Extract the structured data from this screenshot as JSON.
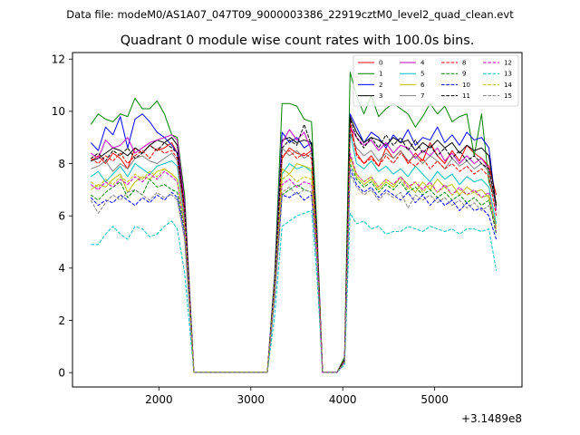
{
  "suptitle": "Data file: modeM0/AS1A07_047T09_9000003386_22919cztM0_level2_quad_clean.evt",
  "chart_data": {
    "type": "line",
    "title": "Quadrant 0 module wise count rates with 100.0s bins.",
    "xlabel": "",
    "ylabel": "",
    "x_offset_label": "+3.1489e8",
    "xlim": [
      1060,
      5950
    ],
    "ylim": [
      -0.55,
      12.25
    ],
    "xticks": [
      2000,
      3000,
      4000,
      5000
    ],
    "xtick_labels": [
      "2000",
      "3000",
      "4000",
      "5000"
    ],
    "yticks": [
      0,
      2,
      4,
      6,
      8,
      10,
      12
    ],
    "ytick_labels": [
      "0",
      "2",
      "4",
      "6",
      "8",
      "10",
      "12"
    ],
    "grid": false,
    "legend_position": "top-right",
    "legend_columns": 4,
    "x": [
      1260,
      1340,
      1420,
      1500,
      1580,
      1660,
      1740,
      1820,
      1900,
      1980,
      2060,
      2140,
      2200,
      2280,
      2380,
      2460,
      2540,
      2620,
      2700,
      2780,
      2860,
      2940,
      3020,
      3100,
      3180,
      3260,
      3340,
      3420,
      3500,
      3580,
      3660,
      3720,
      3780,
      3860,
      3940,
      4020,
      4080,
      4150,
      4230,
      4310,
      4390,
      4470,
      4550,
      4630,
      4710,
      4790,
      4870,
      4950,
      5030,
      5110,
      5190,
      5270,
      5350,
      5430,
      5510,
      5590,
      5670
    ],
    "series": [
      {
        "name": "0",
        "color": "#ff0000",
        "dash": false,
        "values": [
          8.1,
          8.3,
          8.0,
          8.4,
          8.2,
          7.8,
          8.6,
          8.4,
          8.7,
          8.5,
          8.6,
          8.8,
          8.4,
          6.2,
          0.02,
          0.02,
          0.02,
          0.02,
          0.02,
          0.02,
          0.02,
          0.02,
          0.02,
          0.02,
          0.02,
          3.5,
          8.2,
          8.6,
          8.4,
          8.3,
          8.5,
          5.0,
          0.02,
          0.02,
          0.02,
          0.5,
          9.6,
          8.4,
          8.0,
          8.3,
          7.9,
          8.6,
          8.2,
          8.5,
          8.0,
          8.4,
          8.1,
          8.8,
          8.3,
          8.0,
          8.5,
          8.1,
          8.7,
          8.4,
          8.2,
          7.9,
          6.8
        ]
      },
      {
        "name": "1",
        "color": "#008000",
        "dash": false,
        "values": [
          9.5,
          9.9,
          9.7,
          9.6,
          9.9,
          9.8,
          10.5,
          10.1,
          10.1,
          10.4,
          9.9,
          9.1,
          9.0,
          6.8,
          0.02,
          0.02,
          0.02,
          0.02,
          0.02,
          0.02,
          0.02,
          0.02,
          0.02,
          0.02,
          0.02,
          3.8,
          10.3,
          10.3,
          10.2,
          9.7,
          9.6,
          5.5,
          0.02,
          0.02,
          0.02,
          0.6,
          11.5,
          10.6,
          9.9,
          10.6,
          9.8,
          10.1,
          10.3,
          10.1,
          9.9,
          9.4,
          9.8,
          10.3,
          9.9,
          10.2,
          9.6,
          9.8,
          9.9,
          8.3,
          9.9,
          7.3,
          6.5
        ]
      },
      {
        "name": "2",
        "color": "#0000ff",
        "dash": false,
        "values": [
          8.8,
          8.5,
          9.4,
          9.1,
          9.8,
          8.6,
          9.7,
          9.9,
          9.6,
          9.2,
          9.0,
          8.7,
          8.4,
          6.5,
          0.02,
          0.02,
          0.02,
          0.02,
          0.02,
          0.02,
          0.02,
          0.02,
          0.02,
          0.02,
          0.02,
          3.6,
          9.2,
          8.8,
          9.0,
          8.6,
          8.8,
          5.2,
          0.02,
          0.02,
          0.02,
          0.5,
          9.9,
          9.4,
          8.8,
          9.2,
          9.0,
          8.6,
          9.1,
          8.8,
          9.3,
          8.7,
          9.0,
          8.9,
          9.4,
          8.8,
          9.1,
          8.7,
          9.2,
          8.9,
          9.0,
          8.6,
          6.3
        ]
      },
      {
        "name": "3",
        "color": "#000000",
        "dash": false,
        "values": [
          8.1,
          8.2,
          8.4,
          8.6,
          8.5,
          8.3,
          8.6,
          8.4,
          8.7,
          8.9,
          8.8,
          9.0,
          8.7,
          6.4,
          0.02,
          0.02,
          0.02,
          0.02,
          0.02,
          0.02,
          0.02,
          0.02,
          0.02,
          0.02,
          0.02,
          3.5,
          8.9,
          9.0,
          8.8,
          8.9,
          8.8,
          5.1,
          0.02,
          0.02,
          0.02,
          0.5,
          9.8,
          9.2,
          8.8,
          9.0,
          8.9,
          8.7,
          9.0,
          8.8,
          8.9,
          8.5,
          8.8,
          8.6,
          8.9,
          8.6,
          8.8,
          8.4,
          8.7,
          8.5,
          8.6,
          8.3,
          6.4
        ]
      },
      {
        "name": "4",
        "color": "#bf00bf",
        "dash": false,
        "values": [
          8.4,
          8.2,
          8.9,
          8.6,
          8.7,
          9.0,
          8.4,
          8.6,
          8.8,
          8.9,
          9.0,
          9.1,
          8.9,
          6.5,
          0.02,
          0.02,
          0.02,
          0.02,
          0.02,
          0.02,
          0.02,
          0.02,
          0.02,
          0.02,
          0.02,
          3.6,
          8.8,
          9.3,
          8.9,
          9.2,
          8.5,
          5.2,
          0.02,
          0.02,
          0.02,
          0.5,
          9.4,
          9.0,
          8.7,
          8.9,
          8.5,
          8.8,
          8.4,
          8.7,
          8.6,
          8.2,
          8.5,
          8.3,
          8.6,
          8.1,
          8.4,
          8.0,
          8.3,
          8.0,
          8.2,
          7.8,
          6.2
        ]
      },
      {
        "name": "5",
        "color": "#00bfbf",
        "dash": false,
        "values": [
          7.5,
          7.7,
          7.3,
          7.6,
          7.9,
          7.5,
          8.0,
          7.8,
          7.6,
          7.9,
          8.0,
          8.1,
          7.9,
          5.8,
          0.02,
          0.02,
          0.02,
          0.02,
          0.02,
          0.02,
          0.02,
          0.02,
          0.02,
          0.02,
          0.02,
          3.3,
          7.6,
          8.0,
          7.8,
          7.9,
          7.7,
          4.7,
          0.02,
          0.02,
          0.02,
          0.4,
          9.2,
          8.0,
          7.8,
          8.1,
          7.7,
          7.9,
          7.6,
          7.8,
          7.5,
          7.9,
          7.6,
          7.3,
          7.7,
          7.4,
          7.6,
          7.2,
          7.5,
          7.3,
          7.4,
          7.1,
          5.7
        ]
      },
      {
        "name": "6",
        "color": "#bfbf00",
        "dash": false,
        "values": [
          7.0,
          7.2,
          7.1,
          7.4,
          7.6,
          6.9,
          7.3,
          7.5,
          7.4,
          7.7,
          7.8,
          7.6,
          7.4,
          5.6,
          0.02,
          0.02,
          0.02,
          0.02,
          0.02,
          0.02,
          0.02,
          0.02,
          0.02,
          0.02,
          0.02,
          3.2,
          7.8,
          7.6,
          8.0,
          7.9,
          7.8,
          4.8,
          0.02,
          0.02,
          0.02,
          0.4,
          8.3,
          7.5,
          7.2,
          7.4,
          7.0,
          7.3,
          7.1,
          7.5,
          7.2,
          6.9,
          7.3,
          7.0,
          7.4,
          7.1,
          7.2,
          6.8,
          7.1,
          6.9,
          7.0,
          6.7,
          5.6
        ]
      },
      {
        "name": "7",
        "color": "#808080",
        "dash": false,
        "values": [
          7.8,
          7.9,
          8.1,
          7.7,
          8.0,
          7.8,
          8.2,
          8.3,
          8.1,
          8.0,
          8.2,
          8.4,
          8.1,
          5.9,
          0.02,
          0.02,
          0.02,
          0.02,
          0.02,
          0.02,
          0.02,
          0.02,
          0.02,
          0.02,
          0.02,
          3.4,
          8.6,
          8.3,
          8.5,
          8.2,
          8.4,
          4.9,
          0.02,
          0.02,
          0.02,
          0.5,
          9.2,
          8.6,
          8.3,
          8.5,
          8.1,
          8.4,
          8.2,
          8.5,
          8.1,
          8.3,
          8.0,
          8.3,
          8.1,
          7.8,
          8.2,
          7.9,
          8.1,
          7.8,
          8.0,
          7.7,
          6.3
        ]
      },
      {
        "name": "8",
        "color": "#ff0000",
        "dash": true,
        "values": [
          8.2,
          8.0,
          8.3,
          8.1,
          8.4,
          8.0,
          8.3,
          8.5,
          8.2,
          8.6,
          8.4,
          8.5,
          8.2,
          6.1,
          0.02,
          0.02,
          0.02,
          0.02,
          0.02,
          0.02,
          0.02,
          0.02,
          0.02,
          0.02,
          0.02,
          3.4,
          8.3,
          8.5,
          8.2,
          8.4,
          8.2,
          5.0,
          0.02,
          0.02,
          0.02,
          0.5,
          9.5,
          8.3,
          8.0,
          8.2,
          7.9,
          8.3,
          8.0,
          8.4,
          8.1,
          7.9,
          8.2,
          7.8,
          8.1,
          7.8,
          8.0,
          7.7,
          7.9,
          7.6,
          7.8,
          7.5,
          6.0
        ]
      },
      {
        "name": "9",
        "color": "#008000",
        "dash": true,
        "values": [
          6.8,
          6.6,
          6.9,
          7.1,
          7.3,
          6.7,
          7.0,
          6.8,
          7.4,
          7.1,
          7.2,
          7.0,
          6.9,
          5.4,
          0.02,
          0.02,
          0.02,
          0.02,
          0.02,
          0.02,
          0.02,
          0.02,
          0.02,
          0.02,
          0.02,
          3.0,
          6.8,
          7.0,
          7.2,
          7.0,
          6.9,
          4.4,
          0.02,
          0.02,
          0.02,
          0.4,
          8.0,
          7.4,
          7.1,
          7.3,
          6.9,
          7.2,
          7.0,
          7.3,
          6.9,
          7.1,
          6.8,
          7.0,
          6.7,
          6.9,
          6.6,
          6.8,
          6.5,
          6.7,
          6.4,
          6.6,
          5.3
        ]
      },
      {
        "name": "10",
        "color": "#0000ff",
        "dash": true,
        "values": [
          6.7,
          6.4,
          6.6,
          6.5,
          6.8,
          6.6,
          6.4,
          6.7,
          6.5,
          6.8,
          6.6,
          6.9,
          6.7,
          5.2,
          0.02,
          0.02,
          0.02,
          0.02,
          0.02,
          0.02,
          0.02,
          0.02,
          0.02,
          0.02,
          0.02,
          2.9,
          6.8,
          6.7,
          6.9,
          6.6,
          6.8,
          4.3,
          0.02,
          0.02,
          0.02,
          0.4,
          7.8,
          7.2,
          6.9,
          7.1,
          6.7,
          7.0,
          6.8,
          6.6,
          6.9,
          6.5,
          6.8,
          6.4,
          6.7,
          6.4,
          6.6,
          6.2,
          6.5,
          6.2,
          6.3,
          6.0,
          5.1
        ]
      },
      {
        "name": "11",
        "color": "#000000",
        "dash": true,
        "values": [
          8.2,
          8.4,
          8.1,
          8.5,
          8.3,
          8.6,
          8.2,
          8.4,
          8.7,
          8.5,
          8.8,
          8.6,
          8.4,
          6.3,
          0.02,
          0.02,
          0.02,
          0.02,
          0.02,
          0.02,
          0.02,
          0.02,
          0.02,
          0.02,
          0.02,
          3.5,
          8.6,
          8.9,
          8.7,
          9.5,
          8.7,
          5.1,
          0.02,
          0.02,
          0.02,
          0.5,
          9.7,
          9.0,
          8.6,
          9.0,
          8.6,
          9.1,
          8.7,
          9.0,
          8.5,
          8.9,
          8.4,
          8.7,
          8.3,
          8.6,
          8.2,
          8.5,
          8.1,
          8.3,
          8.0,
          7.8,
          6.4
        ]
      },
      {
        "name": "12",
        "color": "#bf00bf",
        "dash": true,
        "values": [
          7.2,
          7.0,
          7.3,
          7.1,
          7.4,
          7.2,
          7.5,
          7.3,
          7.6,
          7.4,
          7.7,
          7.5,
          7.3,
          5.5,
          0.02,
          0.02,
          0.02,
          0.02,
          0.02,
          0.02,
          0.02,
          0.02,
          0.02,
          0.02,
          0.02,
          3.1,
          7.2,
          7.4,
          7.1,
          7.3,
          7.2,
          4.5,
          0.02,
          0.02,
          0.02,
          0.4,
          8.4,
          7.6,
          7.3,
          7.5,
          7.1,
          7.4,
          7.2,
          7.5,
          7.1,
          7.3,
          7.0,
          7.3,
          6.9,
          7.2,
          6.8,
          7.1,
          6.8,
          7.0,
          6.7,
          6.9,
          5.4
        ]
      },
      {
        "name": "13",
        "color": "#00bfbf",
        "dash": true,
        "values": [
          4.9,
          4.9,
          5.3,
          5.6,
          5.3,
          5.1,
          5.6,
          5.5,
          5.2,
          5.3,
          5.6,
          5.8,
          5.5,
          3.8,
          0.02,
          0.02,
          0.02,
          0.02,
          0.02,
          0.02,
          0.02,
          0.02,
          0.02,
          0.02,
          0.02,
          2.2,
          5.6,
          5.8,
          6.0,
          6.1,
          6.2,
          3.7,
          0.02,
          0.02,
          0.02,
          0.3,
          6.1,
          5.7,
          5.8,
          5.5,
          5.6,
          5.3,
          5.4,
          5.4,
          5.6,
          5.5,
          5.4,
          5.6,
          5.5,
          5.4,
          5.5,
          5.3,
          5.5,
          5.5,
          5.4,
          5.5,
          3.9
        ]
      },
      {
        "name": "14",
        "color": "#bfbf00",
        "dash": true,
        "values": [
          7.3,
          7.1,
          7.4,
          7.2,
          7.5,
          7.3,
          7.6,
          7.4,
          7.7,
          7.5,
          7.8,
          7.6,
          7.4,
          5.6,
          0.02,
          0.02,
          0.02,
          0.02,
          0.02,
          0.02,
          0.02,
          0.02,
          0.02,
          0.02,
          0.02,
          3.2,
          7.4,
          7.6,
          7.3,
          7.5,
          7.4,
          4.6,
          0.02,
          0.02,
          0.02,
          0.4,
          8.2,
          7.6,
          7.3,
          7.5,
          7.1,
          7.4,
          7.2,
          7.4,
          7.0,
          7.3,
          6.9,
          7.2,
          6.9,
          7.1,
          6.8,
          7.0,
          6.8,
          6.9,
          6.7,
          6.8,
          5.5
        ]
      },
      {
        "name": "15",
        "color": "#808080",
        "dash": true,
        "values": [
          6.6,
          6.1,
          6.5,
          6.8,
          6.6,
          6.9,
          7.0,
          6.8,
          6.6,
          6.9,
          6.7,
          6.8,
          6.6,
          5.1,
          0.02,
          0.02,
          0.02,
          0.02,
          0.02,
          0.02,
          0.02,
          0.02,
          0.02,
          0.02,
          0.02,
          2.9,
          6.9,
          7.1,
          6.8,
          7.0,
          6.9,
          4.3,
          0.02,
          0.02,
          0.02,
          0.4,
          7.6,
          7.1,
          6.8,
          7.0,
          6.6,
          6.9,
          6.7,
          6.9,
          6.3,
          6.8,
          6.6,
          6.8,
          6.5,
          6.7,
          6.4,
          6.6,
          6.3,
          6.5,
          6.2,
          6.4,
          5.6
        ]
      }
    ]
  }
}
